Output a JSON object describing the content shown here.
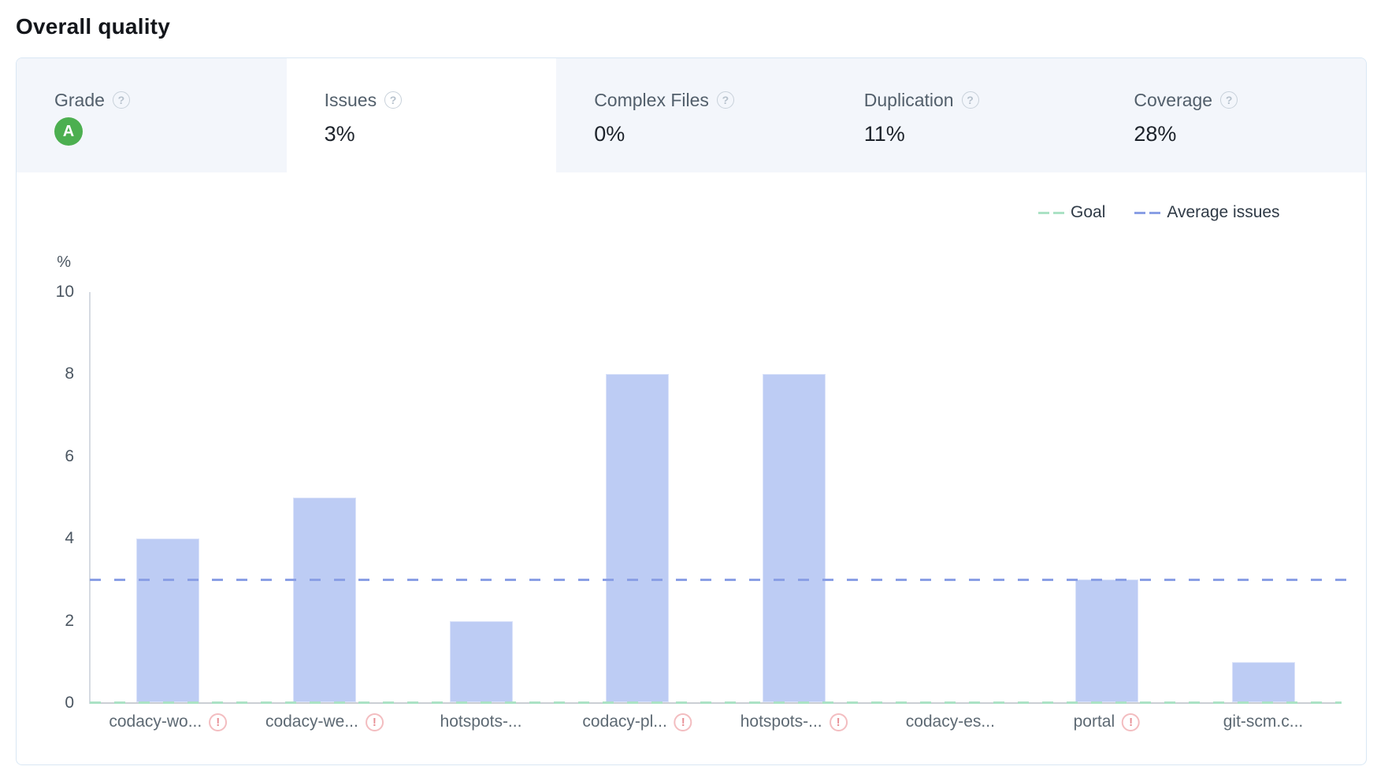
{
  "page": {
    "title": "Overall quality"
  },
  "icons": {
    "help": "?",
    "warning": "!"
  },
  "tabs": [
    {
      "id": "grade",
      "label": "Grade",
      "badge": "A",
      "active": false
    },
    {
      "id": "issues",
      "label": "Issues",
      "value": "3%",
      "active": true
    },
    {
      "id": "complex-files",
      "label": "Complex Files",
      "value": "0%",
      "active": false
    },
    {
      "id": "duplication",
      "label": "Duplication",
      "value": "11%",
      "active": false
    },
    {
      "id": "coverage",
      "label": "Coverage",
      "value": "28%",
      "active": false
    }
  ],
  "legend": [
    {
      "label": "Goal",
      "color": "#abe2c5"
    },
    {
      "label": "Average issues",
      "color": "#8a9fe5"
    }
  ],
  "chart_data": {
    "type": "bar",
    "title": "",
    "xlabel": "",
    "ylabel": "%",
    "ylim": [
      0,
      10
    ],
    "y_ticks": [
      0,
      2,
      4,
      6,
      8,
      10
    ],
    "categories": [
      "codacy-wo...",
      "codacy-we...",
      "hotspots-...",
      "codacy-pl...",
      "hotspots-...",
      "codacy-es...",
      "portal",
      "git-scm.c..."
    ],
    "values": [
      4,
      5,
      2,
      8,
      8,
      0,
      3,
      1
    ],
    "warnings": [
      true,
      true,
      false,
      true,
      true,
      false,
      true,
      false
    ],
    "reference_lines": [
      {
        "name": "Goal",
        "value": 0,
        "style": "dashed",
        "color": "#abe2c5"
      },
      {
        "name": "Average issues",
        "value": 3,
        "style": "dashed",
        "color": "#8a9fe5"
      }
    ],
    "bar_color": "#bdccf4",
    "grid": false,
    "legend_position": "top-right"
  }
}
